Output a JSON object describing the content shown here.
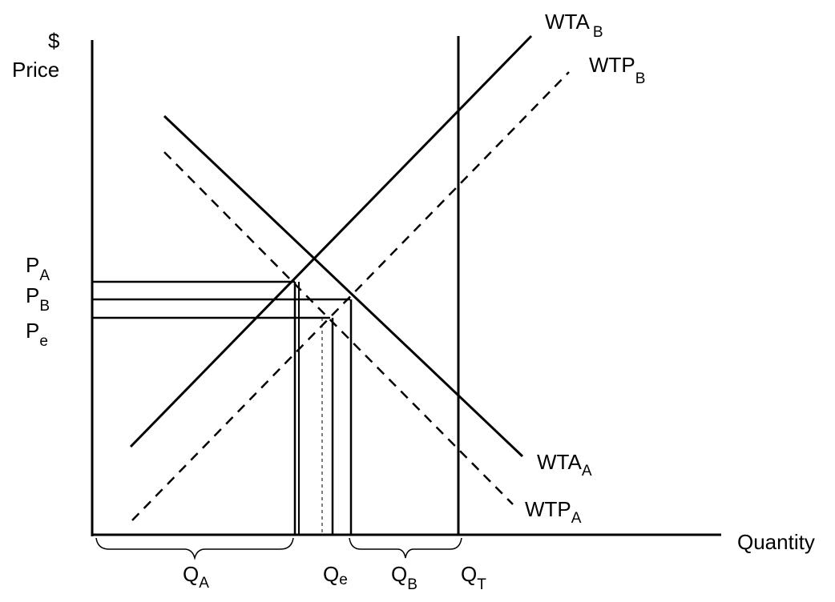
{
  "axes": {
    "y_symbol": "$",
    "y_label": "Price",
    "x_label": "Quantity"
  },
  "curves": [
    {
      "main": "WTA",
      "sub": "B"
    },
    {
      "main": "WTP",
      "sub": "B"
    },
    {
      "main": "WTA",
      "sub": "A"
    },
    {
      "main": "WTP",
      "sub": "A"
    }
  ],
  "prices": [
    {
      "main": "P",
      "sub": "A"
    },
    {
      "main": "P",
      "sub": "B"
    },
    {
      "main": "P",
      "sub": "e"
    }
  ],
  "quantities": [
    {
      "main": "Q",
      "sub": "A"
    },
    {
      "main": "Q",
      "sub": "e"
    },
    {
      "main": "Q",
      "sub": "B"
    },
    {
      "main": "Q",
      "sub": "T"
    }
  ]
}
